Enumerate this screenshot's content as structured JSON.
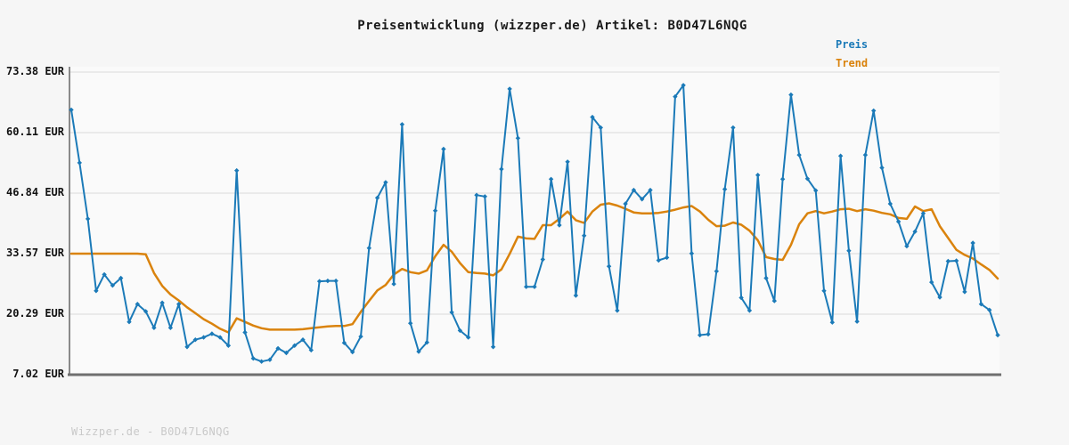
{
  "page": {
    "background": "#f6f6f6",
    "watermark": "Wizzper.de - B0D47L6NQG"
  },
  "chart_data": {
    "type": "line",
    "title": "Preisentwicklung (wizzper.de) Artikel: B0D47L6NQG",
    "xlabel": "",
    "ylabel": "",
    "ylim": [
      7.02,
      73.38
    ],
    "grid": "horizontal",
    "y_ticks": [
      73.38,
      60.11,
      46.84,
      33.57,
      20.29,
      7.02
    ],
    "y_tick_labels": [
      "73.38 EUR",
      "60.11 EUR",
      "46.84 EUR",
      "33.57 EUR",
      "20.29 EUR",
      "7.02 EUR"
    ],
    "legend": {
      "position": "top-right",
      "entries": [
        {
          "label": "Preis",
          "color": "#1b7ab8"
        },
        {
          "label": "Trend",
          "color": "#da830d"
        }
      ]
    },
    "colors": {
      "price_line": "#1b7ab8",
      "trend_line": "#da830d",
      "gridline": "#e4e4e4",
      "axis": "#7f7f7f",
      "plot_background": "#fafafa"
    },
    "series": [
      {
        "name": "Preis",
        "unit": "EUR",
        "values": [
          65.1,
          53.5,
          41.2,
          25.4,
          29.0,
          26.6,
          28.2,
          18.6,
          22.5,
          20.9,
          17.3,
          22.8,
          17.3,
          22.5,
          13.1,
          14.7,
          15.2,
          16.0,
          15.2,
          13.4,
          51.8,
          16.3,
          10.6,
          9.9,
          10.3,
          12.8,
          11.8,
          13.4,
          14.7,
          12.4,
          27.5,
          27.6,
          27.6,
          14.0,
          12.0,
          15.4,
          34.8,
          45.8,
          49.2,
          26.9,
          61.9,
          18.3,
          12.1,
          14.1,
          43.0,
          56.5,
          20.7,
          16.7,
          15.2,
          46.4,
          46.1,
          13.1,
          52.1,
          69.7,
          58.9,
          26.3,
          26.3,
          32.3,
          49.9,
          39.8,
          53.7,
          24.4,
          37.5,
          63.5,
          61.2,
          30.8,
          21.1,
          44.5,
          47.5,
          45.5,
          47.5,
          32.1,
          32.7,
          68.0,
          70.5,
          33.6,
          15.7,
          15.9,
          29.7,
          47.7,
          61.2,
          23.9,
          21.1,
          50.8,
          28.2,
          23.2,
          49.9,
          68.4,
          55.2,
          50.0,
          47.4,
          25.4,
          18.5,
          55.0,
          34.2,
          18.7,
          55.2,
          64.9,
          52.4,
          44.5,
          40.6,
          35.2,
          38.4,
          42.4,
          27.3,
          24.0,
          31.9,
          32.0,
          25.2,
          35.9,
          22.5,
          21.2,
          15.7
        ]
      },
      {
        "name": "Trend",
        "unit": "EUR",
        "values": [
          33.57,
          33.57,
          33.57,
          33.57,
          33.57,
          33.57,
          33.57,
          33.57,
          33.57,
          33.4,
          29.3,
          26.5,
          24.6,
          23.3,
          21.8,
          20.5,
          19.2,
          18.2,
          17.1,
          16.3,
          19.4,
          18.6,
          17.8,
          17.2,
          16.9,
          16.9,
          16.9,
          16.9,
          17.0,
          17.2,
          17.4,
          17.6,
          17.7,
          17.7,
          18.1,
          20.8,
          23.2,
          25.5,
          26.7,
          29.0,
          30.2,
          29.5,
          29.2,
          29.9,
          33.0,
          35.5,
          34.0,
          31.5,
          29.5,
          29.3,
          29.2,
          28.8,
          30.1,
          33.5,
          37.3,
          36.9,
          36.8,
          39.8,
          39.8,
          41.2,
          42.8,
          40.9,
          40.3,
          42.8,
          44.3,
          44.6,
          44.1,
          43.4,
          42.6,
          42.4,
          42.4,
          42.5,
          42.8,
          43.2,
          43.7,
          44.0,
          42.8,
          41.0,
          39.6,
          39.7,
          40.4,
          39.9,
          38.6,
          36.5,
          32.8,
          32.4,
          32.2,
          35.5,
          40.0,
          42.4,
          42.9,
          42.4,
          42.8,
          43.3,
          43.4,
          42.9,
          43.3,
          43.0,
          42.5,
          42.2,
          41.4,
          41.2,
          43.9,
          42.9,
          43.3,
          39.6,
          37.0,
          34.4,
          33.3,
          32.5,
          31.2,
          30.0,
          28.1
        ]
      }
    ]
  }
}
